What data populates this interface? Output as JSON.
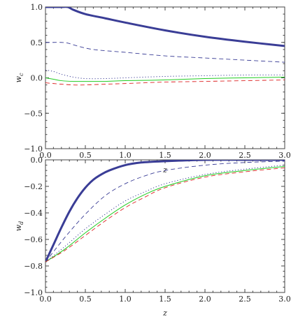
{
  "chart_data": [
    {
      "type": "line",
      "title": "",
      "xlabel": "z",
      "ylabel": "w_c",
      "ylabel_main": "w",
      "ylabel_sub": "c",
      "xlim": [
        0,
        3
      ],
      "ylim": [
        -1,
        1
      ],
      "xticks": [
        "0.0",
        "0.5",
        "1.0",
        "1.5",
        "2.0",
        "2.5",
        "3.0"
      ],
      "yticks": [
        "1.0",
        "0.5",
        "0.0",
        "−0.5",
        "−1.0"
      ],
      "series": [
        {
          "style": "thick-solid",
          "color": "#3a3d96",
          "x": [
            0,
            0.1,
            0.2,
            0.28,
            0.35,
            0.5,
            0.75,
            1.0,
            1.5,
            2.0,
            2.5,
            3.0
          ],
          "y": [
            1.0,
            1.0,
            1.0,
            1.0,
            0.96,
            0.9,
            0.84,
            0.78,
            0.67,
            0.58,
            0.51,
            0.45
          ]
        },
        {
          "style": "dashed",
          "color": "#3a3d96",
          "x": [
            0,
            0.1,
            0.2,
            0.28,
            0.4,
            0.6,
            1.0,
            1.5,
            2.0,
            2.5,
            3.0
          ],
          "y": [
            0.5,
            0.5,
            0.5,
            0.49,
            0.45,
            0.4,
            0.36,
            0.31,
            0.28,
            0.25,
            0.22
          ]
        },
        {
          "style": "dotted",
          "color": "#3a3d96",
          "x": [
            0,
            0.1,
            0.2,
            0.35,
            0.5,
            0.75,
            1.0,
            1.5,
            2.0,
            2.5,
            3.0
          ],
          "y": [
            0.11,
            0.09,
            0.05,
            0.01,
            -0.01,
            -0.01,
            0.0,
            0.02,
            0.03,
            0.04,
            0.04
          ]
        },
        {
          "style": "solid",
          "color": "#22cc22",
          "x": [
            0,
            0.1,
            0.2,
            0.35,
            0.5,
            0.75,
            1.0,
            1.5,
            2.0,
            2.5,
            3.0
          ],
          "y": [
            0.0,
            -0.02,
            -0.04,
            -0.05,
            -0.05,
            -0.05,
            -0.04,
            -0.03,
            -0.01,
            0.0,
            0.01
          ]
        },
        {
          "style": "dashed",
          "color": "#dd2222",
          "x": [
            0,
            0.1,
            0.2,
            0.35,
            0.5,
            0.75,
            1.0,
            1.5,
            2.0,
            2.5,
            3.0
          ],
          "y": [
            -0.07,
            -0.08,
            -0.09,
            -0.1,
            -0.1,
            -0.09,
            -0.08,
            -0.06,
            -0.05,
            -0.04,
            -0.03
          ]
        }
      ]
    },
    {
      "type": "line",
      "title": "",
      "xlabel": "z",
      "ylabel": "w_d",
      "ylabel_main": "w",
      "ylabel_sub": "d",
      "xlim": [
        0,
        3
      ],
      "ylim": [
        -1,
        0
      ],
      "xticks": [
        "0.0",
        "0.5",
        "1.0",
        "1.5",
        "2.0",
        "2.5",
        "3.0"
      ],
      "yticks": [
        "0.0",
        "−0.2",
        "−0.4",
        "−0.6",
        "−0.8",
        "−1.0"
      ],
      "series": [
        {
          "style": "thick-solid",
          "color": "#3a3d96",
          "x": [
            0,
            0.1,
            0.2,
            0.3,
            0.4,
            0.5,
            0.6,
            0.7,
            0.8,
            1.0,
            1.2,
            1.5,
            2.0,
            2.5,
            3.0
          ],
          "y": [
            -0.77,
            -0.64,
            -0.51,
            -0.39,
            -0.29,
            -0.21,
            -0.15,
            -0.11,
            -0.08,
            -0.04,
            -0.02,
            -0.01,
            0.0,
            0.0,
            0.0
          ]
        },
        {
          "style": "dashed",
          "color": "#3a3d96",
          "x": [
            0,
            0.25,
            0.5,
            0.75,
            1.0,
            1.25,
            1.5,
            2.0,
            2.5,
            3.0
          ],
          "y": [
            -0.77,
            -0.58,
            -0.41,
            -0.27,
            -0.18,
            -0.12,
            -0.08,
            -0.04,
            -0.02,
            -0.01
          ]
        },
        {
          "style": "dotted",
          "color": "#3a3d96",
          "x": [
            0,
            0.25,
            0.5,
            0.75,
            1.0,
            1.25,
            1.5,
            2.0,
            2.5,
            3.0
          ],
          "y": [
            -0.77,
            -0.65,
            -0.52,
            -0.41,
            -0.31,
            -0.24,
            -0.18,
            -0.11,
            -0.07,
            -0.04
          ]
        },
        {
          "style": "solid",
          "color": "#22cc22",
          "x": [
            0,
            0.25,
            0.5,
            0.75,
            1.0,
            1.25,
            1.5,
            2.0,
            2.5,
            3.0
          ],
          "y": [
            -0.77,
            -0.67,
            -0.55,
            -0.44,
            -0.34,
            -0.26,
            -0.2,
            -0.12,
            -0.08,
            -0.05
          ]
        },
        {
          "style": "dashed",
          "color": "#dd2222",
          "x": [
            0,
            0.25,
            0.5,
            0.75,
            1.0,
            1.25,
            1.5,
            2.0,
            2.5,
            3.0
          ],
          "y": [
            -0.77,
            -0.68,
            -0.57,
            -0.46,
            -0.36,
            -0.28,
            -0.21,
            -0.13,
            -0.09,
            -0.06
          ]
        }
      ]
    }
  ]
}
